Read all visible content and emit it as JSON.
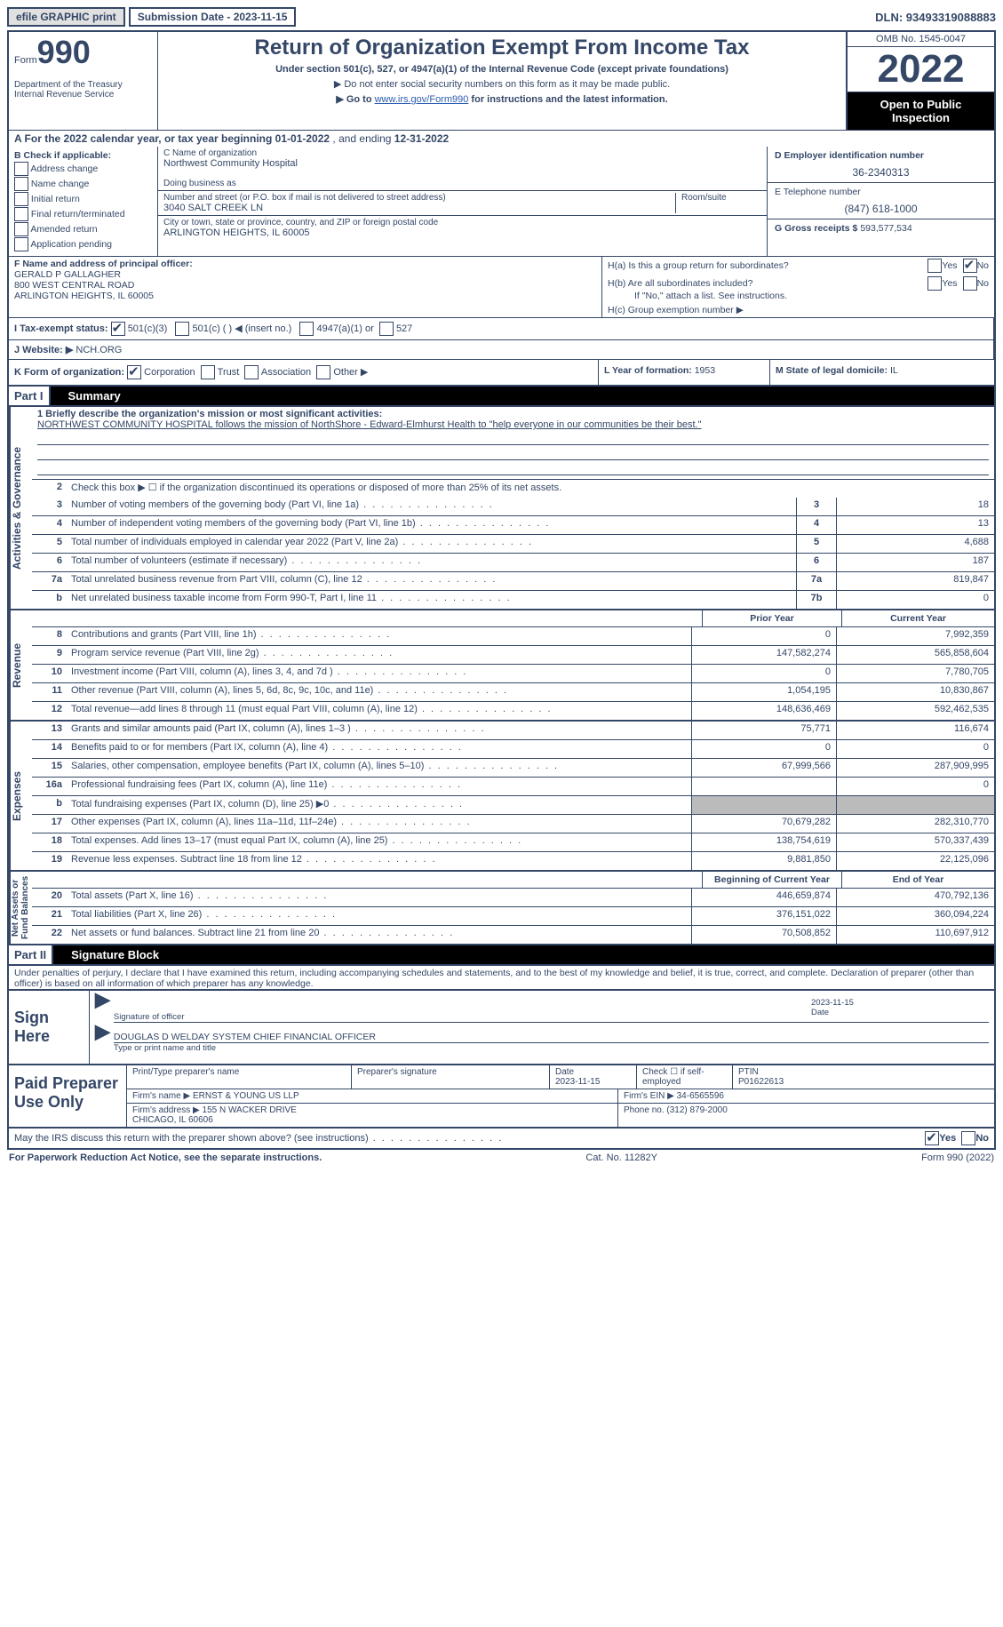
{
  "efile": "efile GRAPHIC print",
  "submission": "Submission Date - 2023-11-15",
  "dln": "DLN: 93493319088883",
  "form": {
    "prefix": "Form",
    "num": "990"
  },
  "title": "Return of Organization Exempt From Income Tax",
  "sub1": "Under section 501(c), 527, or 4947(a)(1) of the Internal Revenue Code (except private foundations)",
  "sub2a": "▶ Do not enter social security numbers on this form as it may be made public.",
  "sub2b_pre": "▶ Go to ",
  "sub2b_link": "www.irs.gov/Form990",
  "sub2b_post": " for instructions and the latest information.",
  "dept": "Department of the Treasury\nInternal Revenue Service",
  "omb": "OMB No. 1545-0047",
  "year": "2022",
  "open_pub": "Open to Public Inspection",
  "lineA_pre": "A For the 2022 calendar year, or tax year beginning ",
  "lineA_begin": "01-01-2022",
  "lineA_mid": "   , and ending ",
  "lineA_end": "12-31-2022",
  "b": {
    "header": "B Check if applicable:",
    "items": [
      "Address change",
      "Name change",
      "Initial return",
      "Final return/terminated",
      "Amended return",
      "Application pending"
    ]
  },
  "c": {
    "name_label": "C Name of organization",
    "name": "Northwest Community Hospital",
    "dba_label": "Doing business as",
    "dba": "",
    "addr_label": "Number and street (or P.O. box if mail is not delivered to street address)",
    "room_label": "Room/suite",
    "addr": "3040 SALT CREEK LN",
    "city_label": "City or town, state or province, country, and ZIP or foreign postal code",
    "city": "ARLINGTON HEIGHTS, IL  60005"
  },
  "d": {
    "label": "D Employer identification number",
    "val": "36-2340313"
  },
  "e": {
    "label": "E Telephone number",
    "val": "(847) 618-1000"
  },
  "g": {
    "label": "G Gross receipts $",
    "val": "593,577,534"
  },
  "f": {
    "label": "F Name and address of principal officer:",
    "name": "GERALD P GALLAGHER",
    "addr": "800 WEST CENTRAL ROAD\nARLINGTON HEIGHTS, IL  60005"
  },
  "h": {
    "a": "H(a)  Is this a group return for subordinates?",
    "b": "H(b)  Are all subordinates included?",
    "b_note": "If \"No,\" attach a list. See instructions.",
    "c": "H(c)  Group exemption number ▶"
  },
  "i": {
    "label": "I  Tax-exempt status:",
    "opts": [
      "501(c)(3)",
      "501(c) (  ) ◀ (insert no.)",
      "4947(a)(1) or",
      "527"
    ]
  },
  "j": {
    "label": "J  Website: ▶",
    "val": "NCH.ORG"
  },
  "k": {
    "label": "K Form of organization:",
    "opts": [
      "Corporation",
      "Trust",
      "Association",
      "Other ▶"
    ]
  },
  "l": {
    "label": "L Year of formation:",
    "val": "1953"
  },
  "m": {
    "label": "M State of legal domicile:",
    "val": "IL"
  },
  "part1": {
    "num": "Part I",
    "title": "Summary"
  },
  "mission_label": "1  Briefly describe the organization's mission or most significant activities:",
  "mission": "NORTHWEST COMMUNITY HOSPITAL follows the mission of NorthShore - Edward-Elmhurst Health to \"help everyone in our communities be their best.\"",
  "line2": "Check this box ▶ ☐  if the organization discontinued its operations or disposed of more than 25% of its net assets.",
  "rows_a": [
    {
      "n": "3",
      "t": "Number of voting members of the governing body (Part VI, line 1a)",
      "box": "3",
      "v": "18"
    },
    {
      "n": "4",
      "t": "Number of independent voting members of the governing body (Part VI, line 1b)",
      "box": "4",
      "v": "13"
    },
    {
      "n": "5",
      "t": "Total number of individuals employed in calendar year 2022 (Part V, line 2a)",
      "box": "5",
      "v": "4,688"
    },
    {
      "n": "6",
      "t": "Total number of volunteers (estimate if necessary)",
      "box": "6",
      "v": "187"
    },
    {
      "n": "7a",
      "t": "Total unrelated business revenue from Part VIII, column (C), line 12",
      "box": "7a",
      "v": "819,847"
    },
    {
      "n": "b",
      "t": "Net unrelated business taxable income from Form 990-T, Part I, line 11",
      "box": "7b",
      "v": "0"
    }
  ],
  "head_prior": "Prior Year",
  "head_current": "Current Year",
  "rows_rev": [
    {
      "n": "8",
      "t": "Contributions and grants (Part VIII, line 1h)",
      "p": "0",
      "c": "7,992,359"
    },
    {
      "n": "9",
      "t": "Program service revenue (Part VIII, line 2g)",
      "p": "147,582,274",
      "c": "565,858,604"
    },
    {
      "n": "10",
      "t": "Investment income (Part VIII, column (A), lines 3, 4, and 7d )",
      "p": "0",
      "c": "7,780,705"
    },
    {
      "n": "11",
      "t": "Other revenue (Part VIII, column (A), lines 5, 6d, 8c, 9c, 10c, and 11e)",
      "p": "1,054,195",
      "c": "10,830,867"
    },
    {
      "n": "12",
      "t": "Total revenue—add lines 8 through 11 (must equal Part VIII, column (A), line 12)",
      "p": "148,636,469",
      "c": "592,462,535"
    }
  ],
  "rows_exp": [
    {
      "n": "13",
      "t": "Grants and similar amounts paid (Part IX, column (A), lines 1–3 )",
      "p": "75,771",
      "c": "116,674"
    },
    {
      "n": "14",
      "t": "Benefits paid to or for members (Part IX, column (A), line 4)",
      "p": "0",
      "c": "0"
    },
    {
      "n": "15",
      "t": "Salaries, other compensation, employee benefits (Part IX, column (A), lines 5–10)",
      "p": "67,999,566",
      "c": "287,909,995"
    },
    {
      "n": "16a",
      "t": "Professional fundraising fees (Part IX, column (A), line 11e)",
      "p": "",
      "c": "0"
    },
    {
      "n": "b",
      "t": "Total fundraising expenses (Part IX, column (D), line 25) ▶0",
      "p": "__shade__",
      "c": "__shade__"
    },
    {
      "n": "17",
      "t": "Other expenses (Part IX, column (A), lines 11a–11d, 11f–24e)",
      "p": "70,679,282",
      "c": "282,310,770"
    },
    {
      "n": "18",
      "t": "Total expenses. Add lines 13–17 (must equal Part IX, column (A), line 25)",
      "p": "138,754,619",
      "c": "570,337,439"
    },
    {
      "n": "19",
      "t": "Revenue less expenses. Subtract line 18 from line 12",
      "p": "9,881,850",
      "c": "22,125,096"
    }
  ],
  "head_begin": "Beginning of Current Year",
  "head_end": "End of Year",
  "rows_net": [
    {
      "n": "20",
      "t": "Total assets (Part X, line 16)",
      "p": "446,659,874",
      "c": "470,792,136"
    },
    {
      "n": "21",
      "t": "Total liabilities (Part X, line 26)",
      "p": "376,151,022",
      "c": "360,094,224"
    },
    {
      "n": "22",
      "t": "Net assets or fund balances. Subtract line 21 from line 20",
      "p": "70,508,852",
      "c": "110,697,912"
    }
  ],
  "vtabs": {
    "a": "Activities & Governance",
    "r": "Revenue",
    "e": "Expenses",
    "n": "Net Assets or\nFund Balances"
  },
  "part2": {
    "num": "Part II",
    "title": "Signature Block"
  },
  "penalties": "Under penalties of perjury, I declare that I have examined this return, including accompanying schedules and statements, and to the best of my knowledge and belief, it is true, correct, and complete. Declaration of preparer (other than officer) is based on all information of which preparer has any knowledge.",
  "sign_here": "Sign Here",
  "sig_officer": "Signature of officer",
  "sig_date": "Date",
  "sig_date_val": "2023-11-15",
  "sig_name": "DOUGLAS D WELDAY  SYSTEM CHIEF FINANCIAL OFFICER",
  "sig_name_label": "Type or print name and title",
  "paid_prep": "Paid Preparer Use Only",
  "prep": {
    "name_label": "Print/Type preparer's name",
    "name": "",
    "sig_label": "Preparer's signature",
    "date_label": "Date",
    "date": "2023-11-15",
    "check_label": "Check ☐ if self-employed",
    "ptin_label": "PTIN",
    "ptin": "P01622613",
    "firm_label": "Firm's name    ▶",
    "firm": "ERNST & YOUNG US LLP",
    "ein_label": "Firm's EIN ▶",
    "ein": "34-6565596",
    "addr_label": "Firm's address ▶",
    "addr": "155 N WACKER DRIVE\nCHICAGO, IL  60606",
    "phone_label": "Phone no.",
    "phone": "(312) 879-2000"
  },
  "discuss": "May the IRS discuss this return with the preparer shown above? (see instructions)",
  "footer": {
    "l": "For Paperwork Reduction Act Notice, see the separate instructions.",
    "m": "Cat. No. 11282Y",
    "r": "Form 990 (2022)"
  }
}
